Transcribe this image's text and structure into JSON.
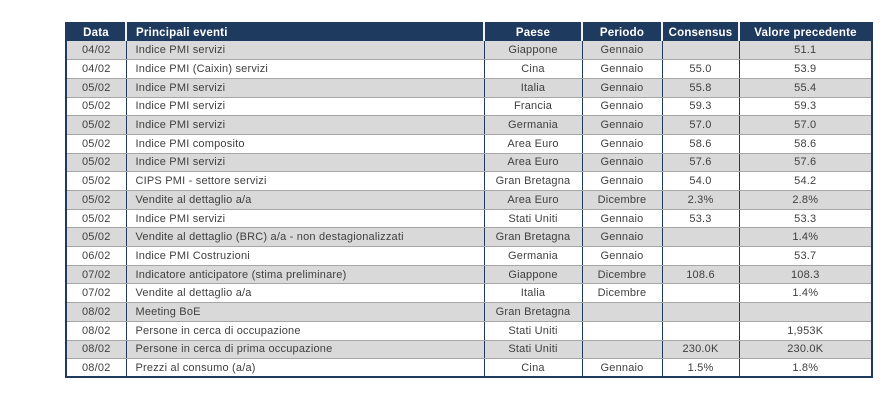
{
  "table": {
    "columns": {
      "data": "Data",
      "evento": "Principali eventi",
      "paese": "Paese",
      "periodo": "Periodo",
      "consensus": "Consensus",
      "valore": "Valore precedente"
    },
    "rows": [
      {
        "data": "04/02",
        "evento": "Indice PMI servizi",
        "paese": "Giappone",
        "periodo": "Gennaio",
        "consensus": "",
        "valore": "51.1"
      },
      {
        "data": "04/02",
        "evento": "Indice PMI (Caixin) servizi",
        "paese": "Cina",
        "periodo": "Gennaio",
        "consensus": "55.0",
        "valore": "53.9"
      },
      {
        "data": "05/02",
        "evento": "Indice PMI servizi",
        "paese": "Italia",
        "periodo": "Gennaio",
        "consensus": "55.8",
        "valore": "55.4"
      },
      {
        "data": "05/02",
        "evento": "Indice PMI servizi",
        "paese": "Francia",
        "periodo": "Gennaio",
        "consensus": "59.3",
        "valore": "59.3"
      },
      {
        "data": "05/02",
        "evento": "Indice PMI servizi",
        "paese": "Germania",
        "periodo": "Gennaio",
        "consensus": "57.0",
        "valore": "57.0"
      },
      {
        "data": "05/02",
        "evento": "Indice PMI composito",
        "paese": "Area Euro",
        "periodo": "Gennaio",
        "consensus": "58.6",
        "valore": "58.6"
      },
      {
        "data": "05/02",
        "evento": "Indice PMI servizi",
        "paese": "Area Euro",
        "periodo": "Gennaio",
        "consensus": "57.6",
        "valore": "57.6"
      },
      {
        "data": "05/02",
        "evento": "CIPS PMI - settore servizi",
        "paese": "Gran Bretagna",
        "periodo": "Gennaio",
        "consensus": "54.0",
        "valore": "54.2"
      },
      {
        "data": "05/02",
        "evento": "Vendite al dettaglio a/a",
        "paese": "Area Euro",
        "periodo": "Dicembre",
        "consensus": "2.3%",
        "valore": "2.8%"
      },
      {
        "data": "05/02",
        "evento": "Indice PMI servizi",
        "paese": "Stati Uniti",
        "periodo": "Gennaio",
        "consensus": "53.3",
        "valore": "53.3"
      },
      {
        "data": "05/02",
        "evento": "Vendite al dettaglio (BRC)  a/a - non destagionalizzati",
        "paese": "Gran Bretagna",
        "periodo": "Gennaio",
        "consensus": "",
        "valore": "1.4%"
      },
      {
        "data": "06/02",
        "evento": "Indice PMI  Costruzioni",
        "paese": "Germania",
        "periodo": "Gennaio",
        "consensus": "",
        "valore": "53.7"
      },
      {
        "data": "07/02",
        "evento": "Indicatore anticipatore (stima preliminare)",
        "paese": "Giappone",
        "periodo": "Dicembre",
        "consensus": "108.6",
        "valore": "108.3"
      },
      {
        "data": "07/02",
        "evento": "Vendite al dettaglio a/a",
        "paese": "Italia",
        "periodo": "Dicembre",
        "consensus": "",
        "valore": "1.4%"
      },
      {
        "data": "08/02",
        "evento": "Meeting BoE",
        "paese": "Gran Bretagna",
        "periodo": "",
        "consensus": "",
        "valore": ""
      },
      {
        "data": "08/02",
        "evento": "Persone in cerca di occupazione",
        "paese": "Stati Uniti",
        "periodo": "",
        "consensus": "",
        "valore": "1,953K"
      },
      {
        "data": "08/02",
        "evento": "Persone in cerca di prima occupazione",
        "paese": "Stati Uniti",
        "periodo": "",
        "consensus": "230.0K",
        "valore": "230.0K"
      },
      {
        "data": "08/02",
        "evento": "Prezzi al consumo   (a/a)",
        "paese": "Cina",
        "periodo": "Gennaio",
        "consensus": "1.5%",
        "valore": "1.8%"
      }
    ]
  },
  "colors": {
    "header_bg": "#1e3a5f",
    "header_text": "#ffffff",
    "row_alt_bg": "#d9d9d9",
    "row_bg": "#ffffff",
    "body_text": "#3f3f3f",
    "grid_vertical": "#1e3a5f",
    "grid_horizontal": "#a6a6a6"
  }
}
